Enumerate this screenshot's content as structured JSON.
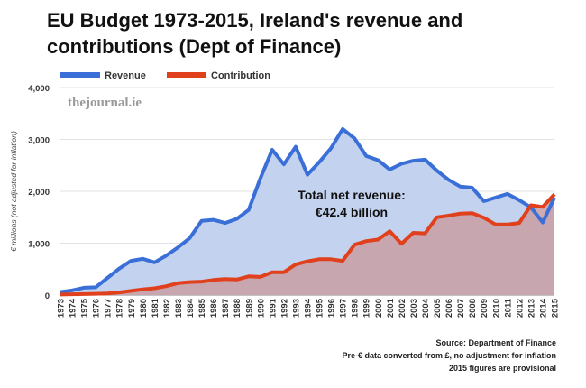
{
  "chart_data": {
    "type": "area",
    "title": "EU Budget 1973-2015, Ireland's revenue and contributions (Dept of Finance)",
    "ylabel": "€ millions (not adjusted for inflation)",
    "xlabel": "",
    "ylim": [
      0,
      4000
    ],
    "yticks": [
      0,
      1000,
      2000,
      3000,
      4000
    ],
    "ytick_labels": [
      "0",
      "1,000",
      "2,000",
      "3,000",
      "4,000"
    ],
    "grid": true,
    "legend_position": "top-left",
    "categories": [
      "1973",
      "1974",
      "1975",
      "1976",
      "1977",
      "1978",
      "1979",
      "1980",
      "1981",
      "1982",
      "1983",
      "1984",
      "1985",
      "1986",
      "1987",
      "1988",
      "1989",
      "1990",
      "1991",
      "1992",
      "1993",
      "1994",
      "1995",
      "1996",
      "1997",
      "1998",
      "1999",
      "2000",
      "2001",
      "2002",
      "2003",
      "2004",
      "2005",
      "2006",
      "2007",
      "2008",
      "2009",
      "2010",
      "2011",
      "2012",
      "2013",
      "2014",
      "2015"
    ],
    "series": [
      {
        "name": "Revenue",
        "color": "#3a6fd8",
        "fill": "#c3d3ef",
        "values": [
          60,
          90,
          140,
          150,
          330,
          510,
          660,
          700,
          630,
          760,
          920,
          1100,
          1430,
          1450,
          1390,
          1470,
          1640,
          2250,
          2800,
          2520,
          2860,
          2320,
          2560,
          2830,
          3200,
          3020,
          2680,
          2600,
          2420,
          2530,
          2590,
          2610,
          2400,
          2220,
          2090,
          2070,
          1810,
          1880,
          1950,
          1830,
          1690,
          1400,
          1880
        ]
      },
      {
        "name": "Contribution",
        "color": "#e0401c",
        "fill": "#c9a1a9",
        "values": [
          10,
          15,
          20,
          25,
          30,
          50,
          80,
          110,
          130,
          170,
          230,
          250,
          260,
          290,
          310,
          300,
          360,
          350,
          440,
          440,
          590,
          650,
          690,
          690,
          660,
          970,
          1040,
          1070,
          1230,
          990,
          1200,
          1190,
          1500,
          1530,
          1570,
          1580,
          1490,
          1360,
          1360,
          1390,
          1730,
          1700,
          1940
        ]
      }
    ],
    "annotation": [
      "Total net revenue:",
      "€42.4 billion"
    ],
    "watermark": "thejournal.ie",
    "footnotes": [
      "Source: Department of Finance",
      "Pre-€ data converted from £, no adjustment for inflation",
      "2015 figures are provisional"
    ]
  }
}
